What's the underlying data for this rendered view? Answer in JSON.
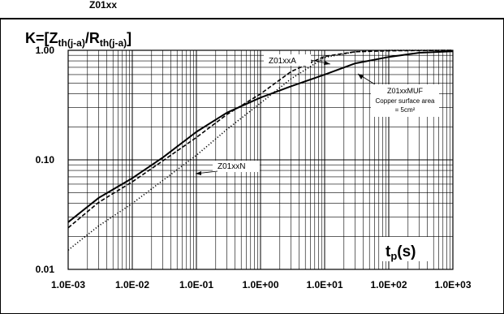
{
  "header_fragment": "Z01xx",
  "chart_data": {
    "type": "line",
    "title": "K=[Zth(j-a)/Rth(j-a)]",
    "title_parts": {
      "k": "K=[Z",
      "sub1": "th(j-a)",
      "slash": "/R",
      "sub2": "th(j-a)",
      "close": "]"
    },
    "xlabel_parts": {
      "t": "t",
      "sub": "p",
      "unit": "(s)"
    },
    "x_scale": "log",
    "y_scale": "log",
    "xlim": [
      0.001,
      1000
    ],
    "ylim": [
      0.01,
      1.0
    ],
    "grid": true,
    "x_ticks": [
      {
        "value": 0.001,
        "label": "1.0E-03"
      },
      {
        "value": 0.01,
        "label": "1.0E-02"
      },
      {
        "value": 0.1,
        "label": "1.0E-01"
      },
      {
        "value": 1,
        "label": "1.0E+00"
      },
      {
        "value": 10,
        "label": "1.0E+01"
      },
      {
        "value": 100,
        "label": "1.0E+02"
      },
      {
        "value": 1000,
        "label": "1.0E+03"
      }
    ],
    "y_ticks": [
      {
        "value": 0.01,
        "label": "0.01"
      },
      {
        "value": 0.1,
        "label": "0.10"
      },
      {
        "value": 1.0,
        "label": "1.00"
      }
    ],
    "series": [
      {
        "name": "Z01xxMUF",
        "label_lines": [
          "Z01xxMUF",
          "Copper surface area",
          "= 5cm²"
        ],
        "style": "solid",
        "points": [
          [
            0.001,
            0.027
          ],
          [
            0.003,
            0.045
          ],
          [
            0.01,
            0.068
          ],
          [
            0.03,
            0.105
          ],
          [
            0.1,
            0.18
          ],
          [
            0.3,
            0.27
          ],
          [
            1,
            0.37
          ],
          [
            3,
            0.47
          ],
          [
            10,
            0.6
          ],
          [
            30,
            0.76
          ],
          [
            100,
            0.87
          ],
          [
            300,
            0.95
          ],
          [
            1000,
            0.98
          ]
        ]
      },
      {
        "name": "Z01xxA",
        "label_lines": [
          "Z01xxA"
        ],
        "style": "dashed",
        "points": [
          [
            0.001,
            0.024
          ],
          [
            0.003,
            0.041
          ],
          [
            0.01,
            0.063
          ],
          [
            0.03,
            0.098
          ],
          [
            0.1,
            0.16
          ],
          [
            0.3,
            0.26
          ],
          [
            1,
            0.4
          ],
          [
            3,
            0.64
          ],
          [
            10,
            0.88
          ],
          [
            30,
            0.97
          ],
          [
            100,
            0.99
          ],
          [
            1000,
            1.0
          ]
        ]
      },
      {
        "name": "Z01xxN",
        "label_lines": [
          "Z01xxN"
        ],
        "style": "dotted",
        "points": [
          [
            0.001,
            0.015
          ],
          [
            0.003,
            0.025
          ],
          [
            0.01,
            0.04
          ],
          [
            0.03,
            0.065
          ],
          [
            0.1,
            0.11
          ],
          [
            0.3,
            0.19
          ],
          [
            1,
            0.33
          ],
          [
            3,
            0.55
          ],
          [
            10,
            0.86
          ],
          [
            30,
            0.97
          ],
          [
            100,
            1.0
          ],
          [
            1000,
            1.0
          ]
        ]
      }
    ]
  }
}
